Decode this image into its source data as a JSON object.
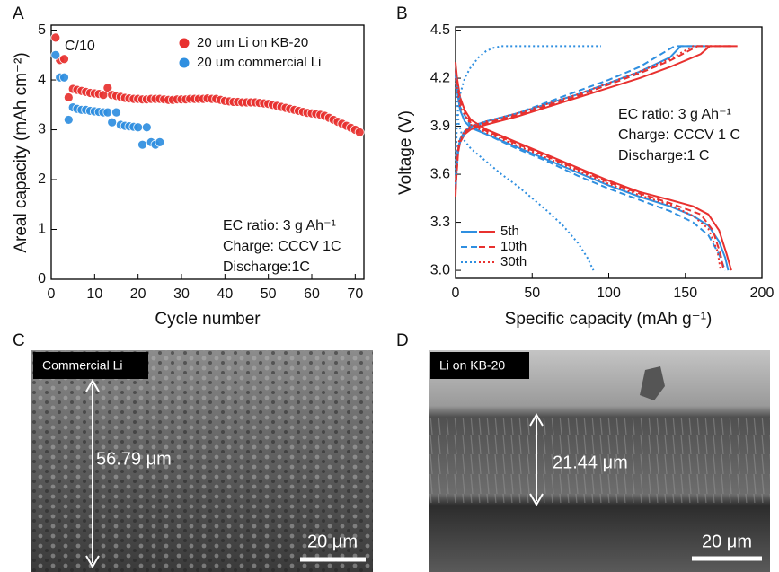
{
  "panel_letters": [
    "A",
    "B",
    "C",
    "D"
  ],
  "chart_data": [
    {
      "type": "scatter",
      "xlabel": "Cycle number",
      "ylabel": "Areal capacity (mAh cm⁻²)",
      "xlim": [
        0,
        72
      ],
      "ylim": [
        0,
        5.1
      ],
      "xticks": [
        0,
        10,
        20,
        30,
        40,
        50,
        60,
        70
      ],
      "yticks": [
        0,
        1,
        2,
        3,
        4,
        5
      ],
      "legend": "upper right",
      "annotations": [
        "C/10"
      ],
      "notes": [
        "EC ratio: 3 g Ah⁻¹",
        "Charge: CCCV 1C",
        "Discharge:1C"
      ],
      "series": [
        {
          "name": "20 um Li on KB-20",
          "color": "#e8312f",
          "x": [
            1,
            2,
            3,
            4,
            5,
            6,
            7,
            8,
            9,
            10,
            11,
            12,
            13,
            14,
            15,
            16,
            17,
            18,
            19,
            20,
            21,
            22,
            23,
            24,
            25,
            26,
            27,
            28,
            29,
            30,
            31,
            32,
            33,
            34,
            35,
            36,
            37,
            38,
            39,
            40,
            41,
            42,
            43,
            44,
            45,
            46,
            47,
            48,
            49,
            50,
            51,
            52,
            53,
            54,
            55,
            56,
            57,
            58,
            59,
            60,
            61,
            62,
            63,
            64,
            65,
            66,
            67,
            68,
            69,
            70,
            71
          ],
          "values": [
            4.85,
            4.4,
            4.42,
            3.65,
            3.82,
            3.8,
            3.78,
            3.76,
            3.74,
            3.73,
            3.72,
            3.7,
            3.84,
            3.7,
            3.68,
            3.66,
            3.64,
            3.63,
            3.62,
            3.62,
            3.61,
            3.61,
            3.62,
            3.62,
            3.62,
            3.61,
            3.6,
            3.6,
            3.61,
            3.61,
            3.61,
            3.62,
            3.62,
            3.62,
            3.62,
            3.63,
            3.62,
            3.62,
            3.6,
            3.58,
            3.57,
            3.56,
            3.56,
            3.55,
            3.55,
            3.55,
            3.55,
            3.54,
            3.53,
            3.52,
            3.5,
            3.48,
            3.46,
            3.44,
            3.42,
            3.4,
            3.38,
            3.36,
            3.34,
            3.33,
            3.32,
            3.3,
            3.28,
            3.24,
            3.2,
            3.16,
            3.12,
            3.08,
            3.04,
            3.0,
            2.95
          ]
        },
        {
          "name": "20 um commercial Li",
          "color": "#2f8fe0",
          "x": [
            1,
            2,
            3,
            4,
            5,
            6,
            7,
            8,
            9,
            10,
            11,
            12,
            13,
            14,
            15,
            16,
            17,
            18,
            19,
            20,
            21,
            22,
            23,
            24,
            25
          ],
          "values": [
            4.5,
            4.05,
            4.05,
            3.2,
            3.45,
            3.42,
            3.4,
            3.4,
            3.38,
            3.37,
            3.36,
            3.35,
            3.35,
            3.15,
            3.35,
            3.1,
            3.08,
            3.07,
            3.06,
            3.05,
            2.7,
            3.05,
            2.75,
            2.7,
            2.75
          ]
        }
      ]
    },
    {
      "type": "line",
      "xlabel": "Specific capacity (mAh g⁻¹)",
      "ylabel": "Voltage (V)",
      "xlim": [
        0,
        200
      ],
      "ylim": [
        2.95,
        4.52
      ],
      "xticks": [
        0,
        50,
        100,
        150,
        200
      ],
      "yticks": [
        {
          "value": 3,
          "label": "3.0"
        },
        3.3,
        3.6,
        3.9,
        4.2,
        4.5
      ],
      "legend": "lower left",
      "notes": [
        "EC ratio: 3 g Ah⁻¹",
        "Charge: CCCV 1 C",
        "Discharge:1 C"
      ],
      "series": [
        {
          "name": "5th",
          "color": "#2f8fe0",
          "dash": "solid",
          "x": [
            0,
            1,
            3,
            6,
            10,
            20,
            40,
            60,
            80,
            100,
            120,
            140,
            147,
            165,
            null,
            0,
            1,
            3,
            6,
            10,
            20,
            40,
            60,
            80,
            100,
            120,
            140,
            155,
            165,
            172,
            176,
            178
          ],
          "values": [
            3.5,
            3.72,
            3.82,
            3.87,
            3.9,
            3.93,
            3.98,
            4.04,
            4.1,
            4.17,
            4.24,
            4.33,
            4.4,
            4.4,
            null,
            4.25,
            4.12,
            4.0,
            3.93,
            3.89,
            3.85,
            3.77,
            3.69,
            3.61,
            3.53,
            3.46,
            3.4,
            3.34,
            3.28,
            3.18,
            3.08,
            3.0
          ]
        },
        {
          "name": "5th",
          "color": "#e8312f",
          "dash": "solid",
          "x": [
            0,
            1,
            3,
            6,
            10,
            20,
            40,
            60,
            80,
            100,
            120,
            140,
            160,
            166,
            184,
            null,
            0,
            1,
            3,
            6,
            10,
            20,
            40,
            60,
            80,
            100,
            120,
            140,
            155,
            165,
            172,
            177,
            180
          ],
          "values": [
            3.46,
            3.7,
            3.8,
            3.85,
            3.88,
            3.91,
            3.96,
            4.02,
            4.08,
            4.14,
            4.2,
            4.27,
            4.35,
            4.4,
            4.4,
            null,
            4.3,
            4.2,
            4.08,
            4.0,
            3.94,
            3.88,
            3.8,
            3.72,
            3.64,
            3.56,
            3.49,
            3.44,
            3.4,
            3.35,
            3.25,
            3.1,
            3.0
          ]
        },
        {
          "name": "10th",
          "color": "#2f8fe0",
          "dash": "dashed",
          "x": [
            0,
            2,
            6,
            10,
            20,
            40,
            60,
            80,
            100,
            120,
            143,
            165,
            null,
            0,
            3,
            10,
            20,
            40,
            60,
            80,
            100,
            120,
            140,
            155,
            165,
            172,
            176
          ],
          "values": [
            3.52,
            3.78,
            3.86,
            3.89,
            3.93,
            3.98,
            4.05,
            4.12,
            4.19,
            4.27,
            4.4,
            4.4,
            null,
            4.22,
            4.02,
            3.9,
            3.85,
            3.76,
            3.68,
            3.59,
            3.51,
            3.44,
            3.37,
            3.3,
            3.22,
            3.1,
            3.0
          ]
        },
        {
          "name": "10th",
          "color": "#e8312f",
          "dash": "dashed",
          "x": [
            0,
            2,
            6,
            10,
            20,
            40,
            60,
            80,
            100,
            120,
            140,
            158,
            182,
            null,
            0,
            3,
            10,
            20,
            40,
            60,
            80,
            100,
            120,
            140,
            160,
            168,
            173,
            175
          ],
          "values": [
            3.5,
            3.78,
            3.86,
            3.89,
            3.92,
            3.97,
            4.03,
            4.09,
            4.16,
            4.23,
            4.31,
            4.4,
            4.4,
            null,
            4.25,
            4.05,
            3.92,
            3.87,
            3.79,
            3.71,
            3.63,
            3.55,
            3.48,
            3.42,
            3.35,
            3.25,
            3.1,
            3.0
          ]
        },
        {
          "name": "30th",
          "color": "#2f8fe0",
          "dash": "dotted",
          "x": [
            0,
            1,
            3,
            6,
            10,
            15,
            20,
            25,
            30,
            95,
            null,
            0,
            2,
            5,
            10,
            20,
            30,
            40,
            50,
            60,
            70,
            80,
            86,
            90
          ],
          "values": [
            3.6,
            3.95,
            4.1,
            4.2,
            4.27,
            4.33,
            4.37,
            4.39,
            4.4,
            4.4,
            null,
            4.2,
            3.92,
            3.82,
            3.76,
            3.68,
            3.6,
            3.53,
            3.45,
            3.37,
            3.28,
            3.17,
            3.08,
            3.0
          ]
        },
        {
          "name": "30th",
          "color": "#e8312f",
          "dash": "dotted",
          "x": [
            0,
            2,
            6,
            10,
            20,
            40,
            60,
            80,
            100,
            120,
            140,
            155,
            180,
            null,
            0,
            3,
            10,
            20,
            40,
            60,
            80,
            100,
            120,
            140,
            155,
            165,
            171,
            173
          ],
          "values": [
            3.55,
            3.8,
            3.87,
            3.9,
            3.93,
            3.98,
            4.04,
            4.1,
            4.17,
            4.24,
            4.32,
            4.4,
            4.4,
            null,
            4.2,
            4.02,
            3.91,
            3.86,
            3.78,
            3.7,
            3.62,
            3.54,
            3.47,
            3.41,
            3.34,
            3.26,
            3.12,
            3.0
          ]
        }
      ]
    }
  ],
  "images": [
    {
      "label": "Commercial Li",
      "thickness": "56.79 μm",
      "scale": "20 μm"
    },
    {
      "label": "Li on KB-20",
      "thickness": "21.44 μm",
      "scale": "20 μm"
    }
  ]
}
